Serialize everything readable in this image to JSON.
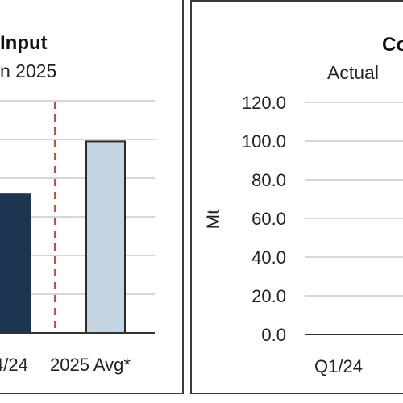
{
  "chart_data": [
    {
      "type": "bar",
      "title": "Input",
      "subtitle": "n 2025",
      "categories": [
        "4/24",
        "2025 Avg*"
      ],
      "values": [
        72,
        99
      ],
      "colors": [
        "#1c3550",
        "#c3d4e2"
      ],
      "ylim": [
        0,
        120
      ],
      "grid": true,
      "reference_line": {
        "style": "dashed",
        "color": "#c0504d",
        "between": [
          "4/24",
          "2025 Avg*"
        ]
      }
    },
    {
      "type": "bar",
      "title": "Co",
      "subtitle": "Actual",
      "ylabel": "Mt",
      "yticks": [
        "120.0",
        "100.0",
        "80.0",
        "60.0",
        "40.0",
        "20.0",
        "0.0"
      ],
      "ylim": [
        0,
        120
      ],
      "categories": [
        "Q1/24"
      ],
      "values": [
        0
      ],
      "grid": true
    }
  ]
}
